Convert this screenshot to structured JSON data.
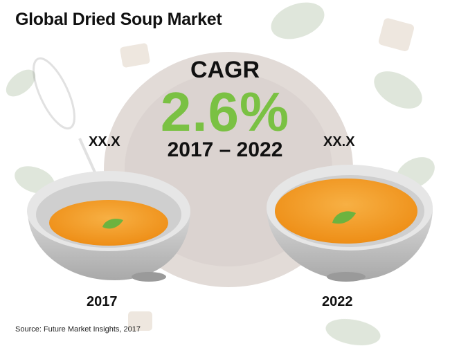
{
  "chart_data": {
    "type": "infographic",
    "title": "Global Dried Soup Market",
    "metric_label": "CAGR",
    "metric_value": "2.6%",
    "period": "2017 – 2022",
    "categories": [
      "2017",
      "2022"
    ],
    "values": [
      "XX.X",
      "XX.X"
    ],
    "source": "Source: Future Market Insights, 2017"
  },
  "colors": {
    "accent_green": "#7ac143",
    "soup_orange": "#f39a1c",
    "bowl_gray": "#b5b5b5"
  },
  "icons": [
    "soup-bowl-icon",
    "leaf-icon",
    "spoon-icon"
  ]
}
